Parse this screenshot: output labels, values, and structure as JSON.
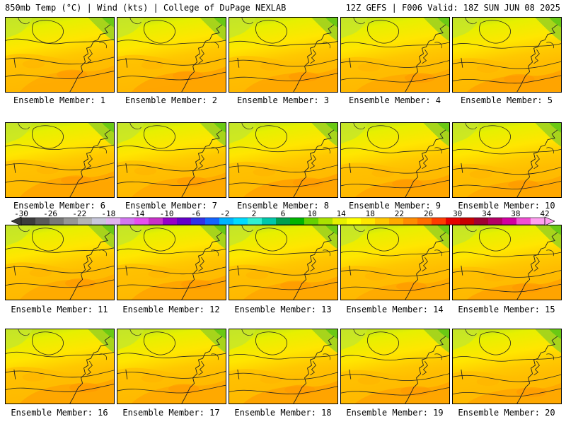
{
  "header": {
    "left": "850mb Temp (°C) | Wind (kts) | College of DuPage NEXLAB",
    "right": "12Z GEFS | F006 Valid: 18Z SUN JUN 08 2025"
  },
  "panel_label_prefix": "Ensemble Member:",
  "panels": [
    {
      "member": 1,
      "label": "Ensemble Member: 1"
    },
    {
      "member": 2,
      "label": "Ensemble Member: 2"
    },
    {
      "member": 3,
      "label": "Ensemble Member: 3"
    },
    {
      "member": 4,
      "label": "Ensemble Member: 4"
    },
    {
      "member": 5,
      "label": "Ensemble Member: 5"
    },
    {
      "member": 6,
      "label": "Ensemble Member: 6"
    },
    {
      "member": 7,
      "label": "Ensemble Member: 7"
    },
    {
      "member": 8,
      "label": "Ensemble Member: 8"
    },
    {
      "member": 9,
      "label": "Ensemble Member: 9"
    },
    {
      "member": 10,
      "label": "Ensemble Member: 10"
    },
    {
      "member": 11,
      "label": "Ensemble Member: 11"
    },
    {
      "member": 12,
      "label": "Ensemble Member: 12"
    },
    {
      "member": 13,
      "label": "Ensemble Member: 13"
    },
    {
      "member": 14,
      "label": "Ensemble Member: 14"
    },
    {
      "member": 15,
      "label": "Ensemble Member: 15"
    },
    {
      "member": 16,
      "label": "Ensemble Member: 16"
    },
    {
      "member": 17,
      "label": "Ensemble Member: 17"
    },
    {
      "member": 18,
      "label": "Ensemble Member: 18"
    },
    {
      "member": 19,
      "label": "Ensemble Member: 19"
    },
    {
      "member": 20,
      "label": "Ensemble Member: 20"
    }
  ],
  "colorbar": {
    "min": -30,
    "max": 42,
    "step": 2,
    "tick_labels": [
      "-30",
      "-26",
      "-22",
      "-18",
      "-14",
      "-10",
      "-6",
      "-2",
      "2",
      "6",
      "10",
      "14",
      "18",
      "22",
      "26",
      "30",
      "34",
      "38",
      "42"
    ],
    "colors": [
      "#3c3c3c",
      "#5a5a5a",
      "#787878",
      "#969696",
      "#b4b4b4",
      "#c8c8dc",
      "#e1b4f0",
      "#d278f0",
      "#e650f0",
      "#c832c8",
      "#9600c8",
      "#6400c8",
      "#3232e6",
      "#1464ff",
      "#00b4ff",
      "#00dcff",
      "#32f0d2",
      "#00c8aa",
      "#00a050",
      "#00b400",
      "#64d200",
      "#aae100",
      "#e6f000",
      "#ffff00",
      "#ffe600",
      "#ffc800",
      "#ffaa00",
      "#ff8c00",
      "#ff6e00",
      "#ff3c00",
      "#e60000",
      "#c80000",
      "#a00032",
      "#b40064",
      "#d200a0",
      "#f050d2",
      "#ffa0f0"
    ]
  }
}
